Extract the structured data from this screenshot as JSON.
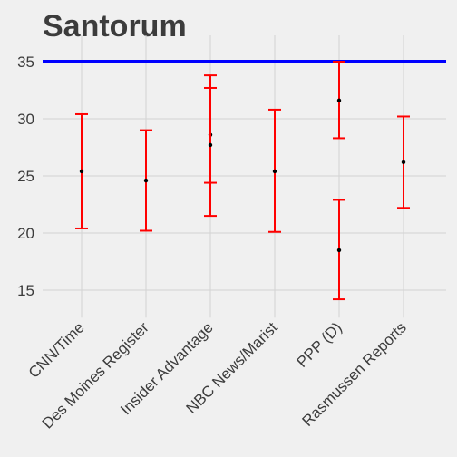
{
  "chart_data": {
    "type": "errorbar",
    "title": "Santorum",
    "xlabel": "",
    "ylabel": "",
    "categories": [
      "CNN/Time",
      "Des Moines Register",
      "Insider Advantage",
      "NBC News/Marist",
      "PPP (D)",
      "Rasmussen Reports"
    ],
    "points": [
      {
        "category": "CNN/Time",
        "value": 25.4,
        "low": 20.4,
        "high": 30.4
      },
      {
        "category": "Des Moines Register",
        "value": 24.6,
        "low": 20.2,
        "high": 29.0
      },
      {
        "category": "Insider Advantage",
        "value": 28.6,
        "low": 24.4,
        "high": 32.7
      },
      {
        "category": "Insider Advantage",
        "value": 27.7,
        "low": 21.5,
        "high": 33.8
      },
      {
        "category": "NBC News/Marist",
        "value": 25.4,
        "low": 20.1,
        "high": 30.8
      },
      {
        "category": "PPP (D)",
        "value": 31.6,
        "low": 28.3,
        "high": 35.0
      },
      {
        "category": "PPP (D)",
        "value": 18.5,
        "low": 14.2,
        "high": 22.9
      },
      {
        "category": "Rasmussen Reports",
        "value": 26.2,
        "low": 22.2,
        "high": 30.2
      }
    ],
    "reference_line": {
      "y": 35,
      "color": "#0000ff"
    },
    "yticks": [
      15,
      20,
      25,
      30,
      35
    ],
    "ylim": [
      12.6,
      37.3
    ],
    "grid": true,
    "colors": {
      "errorbar": "#ff0000",
      "point": "#000000",
      "background": "#f0f0f0",
      "grid": "#d2d2d2"
    }
  }
}
